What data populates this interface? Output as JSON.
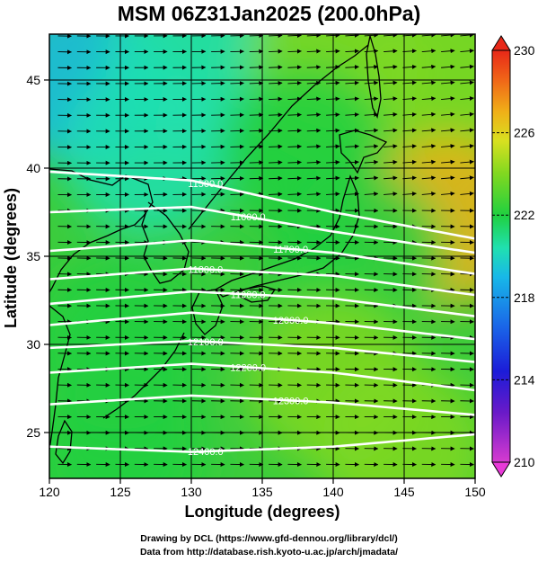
{
  "title": "MSM 06Z31Jan2025 (200.0hPa)",
  "chart_data": {
    "type": "heatmap",
    "title": "MSM 06Z31Jan2025 (200.0hPa)",
    "xlabel": "Longitude (degrees)",
    "ylabel": "Latitude  (degrees)",
    "xlim": [
      120,
      150
    ],
    "ylim": [
      22.4,
      47.6
    ],
    "x_ticks": [
      "120",
      "125",
      "130",
      "135",
      "140",
      "145",
      "150"
    ],
    "y_ticks": [
      "25",
      "30",
      "35",
      "40",
      "45"
    ],
    "colorbar": {
      "range": [
        210,
        230
      ],
      "labels": [
        "210",
        "214",
        "218",
        "222",
        "226",
        "230"
      ],
      "colors": [
        "#d63bd0",
        "#6a1ac8",
        "#1c1cd8",
        "#1a66e8",
        "#18b8e8",
        "#20e0b0",
        "#20d040",
        "#80d820",
        "#d8e020",
        "#f0b018",
        "#f06418",
        "#e82818"
      ]
    },
    "contours": [
      {
        "label": "11500.0",
        "lat_at_lon": [
          [
            120,
            39.8
          ],
          [
            130,
            39.3
          ],
          [
            140,
            37.5
          ],
          [
            150,
            36.0
          ]
        ]
      },
      {
        "label": "11600.0",
        "lat_at_lon": [
          [
            120,
            37.5
          ],
          [
            130,
            37.8
          ],
          [
            140,
            36.4
          ],
          [
            150,
            35.2
          ]
        ]
      },
      {
        "label": "11700.0",
        "lat_at_lon": [
          [
            120,
            35.3
          ],
          [
            130,
            35.9
          ],
          [
            140,
            35.2
          ],
          [
            150,
            34.0
          ]
        ]
      },
      {
        "label": "11800.0",
        "lat_at_lon": [
          [
            120,
            33.7
          ],
          [
            130,
            34.3
          ],
          [
            140,
            33.9
          ],
          [
            150,
            32.8
          ]
        ]
      },
      {
        "label": "11900.0",
        "lat_at_lon": [
          [
            120,
            32.3
          ],
          [
            130,
            33.0
          ],
          [
            140,
            32.6
          ],
          [
            150,
            31.6
          ]
        ]
      },
      {
        "label": "12000.0",
        "lat_at_lon": [
          [
            120,
            31.1
          ],
          [
            130,
            31.8
          ],
          [
            140,
            31.2
          ],
          [
            150,
            30.3
          ]
        ]
      },
      {
        "label": "12100.0",
        "lat_at_lon": [
          [
            120,
            29.8
          ],
          [
            130,
            30.2
          ],
          [
            140,
            29.8
          ],
          [
            150,
            29.0
          ]
        ]
      },
      {
        "label": "12200.0",
        "lat_at_lon": [
          [
            120,
            28.4
          ],
          [
            130,
            28.9
          ],
          [
            140,
            28.4
          ],
          [
            150,
            27.4
          ]
        ]
      },
      {
        "label": "12300.0",
        "lat_at_lon": [
          [
            120,
            26.6
          ],
          [
            130,
            27.1
          ],
          [
            140,
            26.7
          ],
          [
            150,
            26.0
          ]
        ]
      },
      {
        "label": "12400.0",
        "lat_at_lon": [
          [
            120,
            24.2
          ],
          [
            130,
            23.9
          ],
          [
            140,
            24.2
          ],
          [
            150,
            24.9
          ]
        ]
      }
    ],
    "temperature_field": [
      {
        "lon": 122,
        "lat": 45,
        "value": 218
      },
      {
        "lon": 130,
        "lat": 46,
        "value": 219
      },
      {
        "lon": 140,
        "lat": 46,
        "value": 222
      },
      {
        "lon": 148,
        "lat": 45,
        "value": 222
      },
      {
        "lon": 127,
        "lat": 41,
        "value": 219
      },
      {
        "lon": 138,
        "lat": 41,
        "value": 220
      },
      {
        "lon": 148,
        "lat": 37,
        "value": 226
      },
      {
        "lon": 142,
        "lat": 35,
        "value": 220
      },
      {
        "lon": 125,
        "lat": 30,
        "value": 221
      },
      {
        "lon": 140,
        "lat": 28,
        "value": 222
      },
      {
        "lon": 125,
        "lat": 24,
        "value": 221
      },
      {
        "lon": 145,
        "lat": 24,
        "value": 222
      }
    ],
    "wind_field": {
      "description": "westerly flow",
      "arrow_glyph": "arrow"
    },
    "grid": true
  },
  "credits": {
    "line1": "Drawing by DCL (https://www.gfd-dennou.org/library/dcl/)",
    "line2": "Data from http://database.rish.kyoto-u.ac.jp/arch/jmadata/"
  }
}
